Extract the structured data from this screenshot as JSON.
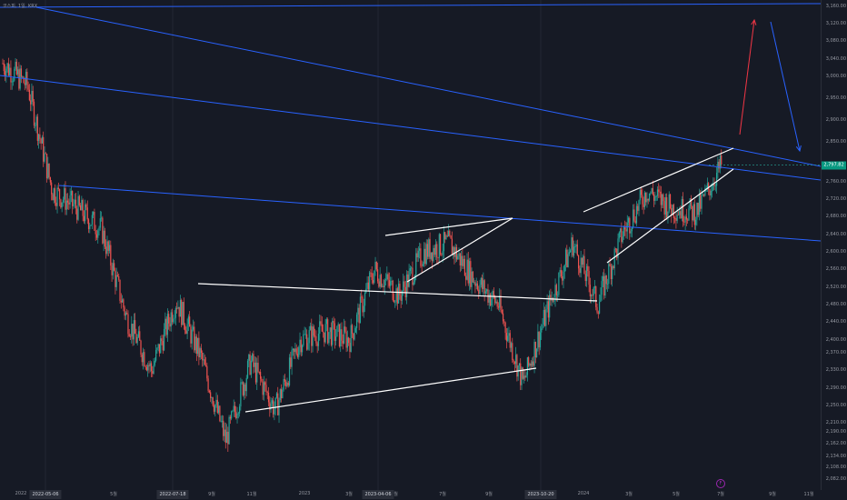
{
  "symbol": "코스피, 1일, KRX",
  "current_price": "2,797.82",
  "colors": {
    "background": "#161a25",
    "up": "#26a69a",
    "down": "#ef5350",
    "trendline": "#2962ff",
    "pattern": "#ffffff",
    "arrow_up": "#f23645",
    "arrow_down": "#2962ff"
  },
  "time_markers": [
    "2022-05-06",
    "2022-07-18",
    "2023-04-06",
    "2023-10-20"
  ],
  "event_icon": "F",
  "chart_data": {
    "type": "candlestick",
    "title": "",
    "y_ticks": [
      "3,160.00",
      "3,120.00",
      "3,080.00",
      "3,040.00",
      "3,000.00",
      "2,950.00",
      "2,900.00",
      "2,850.00",
      "2,800.00",
      "2,760.00",
      "2,720.00",
      "2,680.00",
      "2,640.00",
      "2,600.00",
      "2,560.00",
      "2,520.00",
      "2,480.00",
      "2,440.00",
      "2,400.00",
      "2,370.00",
      "2,330.00",
      "2,290.00",
      "2,250.00",
      "2,210.00",
      "2,190.00",
      "2,162.00",
      "2,134.00",
      "2,108.00",
      "2,082.00"
    ],
    "x_ticks": [
      "2022",
      "5월",
      "7월",
      "9월",
      "11월",
      "2023",
      "3월",
      "5월",
      "7월",
      "9월",
      "2024",
      "3월",
      "5월",
      "7월",
      "9월",
      "11월"
    ],
    "ylim": [
      2082,
      3170
    ],
    "series": [
      {
        "name": "",
        "type": "candlestick",
        "points": [
          [
            "2022-01",
            3030
          ],
          [
            "2022-02",
            2980
          ],
          [
            "2022-03",
            2740
          ],
          [
            "2022-04",
            2700
          ],
          [
            "2022-05",
            2650
          ],
          [
            "2022-06",
            2450
          ],
          [
            "2022-07",
            2330
          ],
          [
            "2022-08",
            2490
          ],
          [
            "2022-09",
            2360
          ],
          [
            "2022-10",
            2170
          ],
          [
            "2022-11",
            2350
          ],
          [
            "2022-12",
            2240
          ],
          [
            "2023-01",
            2400
          ],
          [
            "2023-02",
            2420
          ],
          [
            "2023-03",
            2400
          ],
          [
            "2023-04",
            2560
          ],
          [
            "2023-05",
            2500
          ],
          [
            "2023-06",
            2600
          ],
          [
            "2023-07",
            2620
          ],
          [
            "2023-08",
            2540
          ],
          [
            "2023-09",
            2480
          ],
          [
            "2023-10",
            2300
          ],
          [
            "2023-11",
            2470
          ],
          [
            "2023-12",
            2620
          ],
          [
            "2024-01",
            2480
          ],
          [
            "2024-02",
            2640
          ],
          [
            "2024-03",
            2740
          ],
          [
            "2024-04",
            2700
          ],
          [
            "2024-05",
            2690
          ],
          [
            "2024-06",
            2797.82
          ]
        ]
      }
    ]
  }
}
